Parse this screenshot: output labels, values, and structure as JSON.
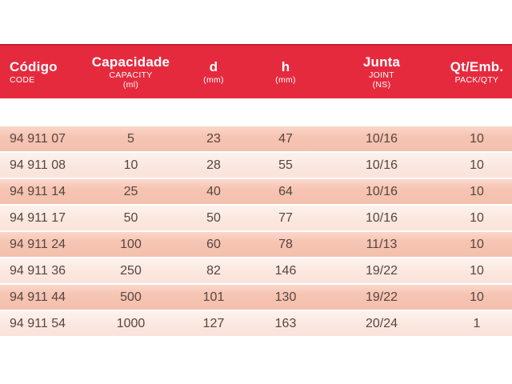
{
  "header": {
    "columns": [
      {
        "label": "Código",
        "sub": [
          "CODE"
        ]
      },
      {
        "label": "Capacidade",
        "sub": [
          "CAPACITY",
          "(ml)"
        ]
      },
      {
        "label": "d",
        "sub": [
          "(mm)"
        ]
      },
      {
        "label": "h",
        "sub": [
          "(mm)"
        ]
      },
      {
        "label": "Junta",
        "sub": [
          "JOINT",
          "(NS)"
        ]
      },
      {
        "label": "Qt/Emb.",
        "sub": [
          "PACK/QTY"
        ]
      }
    ]
  },
  "table": {
    "column_keys": [
      "code",
      "capacity",
      "d",
      "h",
      "joint",
      "pack"
    ],
    "rows": [
      {
        "code": "94 911 07",
        "capacity": "5",
        "d": "23",
        "h": "47",
        "joint": "10/16",
        "pack": "10"
      },
      {
        "code": "94 911 08",
        "capacity": "10",
        "d": "28",
        "h": "55",
        "joint": "10/16",
        "pack": "10"
      },
      {
        "code": "94 911 14",
        "capacity": "25",
        "d": "40",
        "h": "64",
        "joint": "10/16",
        "pack": "10"
      },
      {
        "code": "94 911 17",
        "capacity": "50",
        "d": "50",
        "h": "77",
        "joint": "10/16",
        "pack": "10"
      },
      {
        "code": "94 911 24",
        "capacity": "100",
        "d": "60",
        "h": "78",
        "joint": "11/13",
        "pack": "10"
      },
      {
        "code": "94 911 36",
        "capacity": "250",
        "d": "82",
        "h": "146",
        "joint": "19/22",
        "pack": "10"
      },
      {
        "code": "94 911 44",
        "capacity": "500",
        "d": "101",
        "h": "130",
        "joint": "19/22",
        "pack": "10"
      },
      {
        "code": "94 911 54",
        "capacity": "1000",
        "d": "127",
        "h": "163",
        "joint": "20/24",
        "pack": "1"
      }
    ]
  },
  "colors": {
    "header_red": "#e62a3e",
    "header_top_border": "#c11f33",
    "row_dark": "#f6c4b3",
    "row_light": "#fbe7df",
    "row_text": "#55463f",
    "header_text": "#ffffff"
  }
}
